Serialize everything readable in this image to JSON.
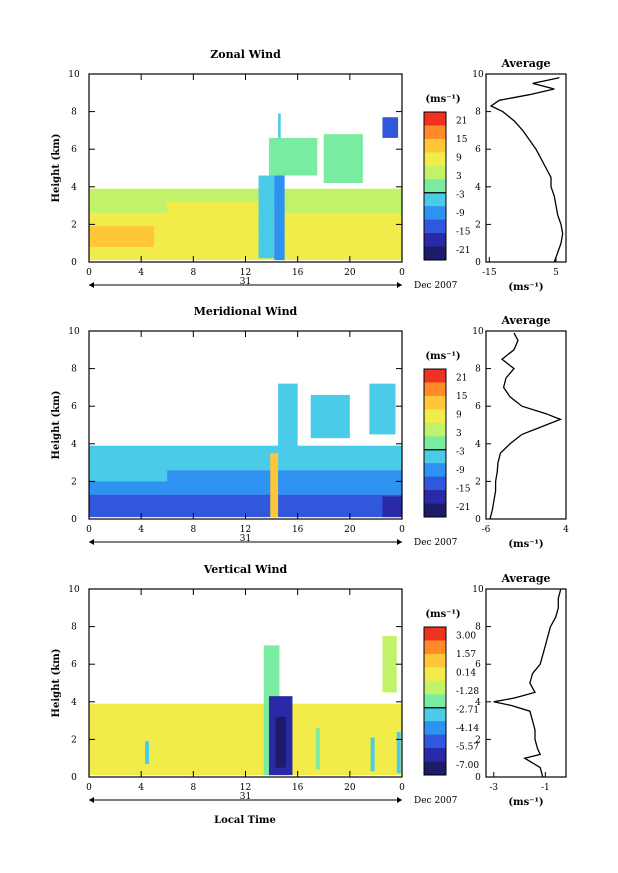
{
  "figure": {
    "xaxis_title": "Local Time"
  },
  "panels": [
    {
      "title": "Zonal Wind",
      "ylabel": "Height (km)",
      "yticks": [
        "0",
        "2",
        "4",
        "6",
        "8",
        "10"
      ],
      "xticks": [
        "0",
        "4",
        "8",
        "12",
        "16",
        "20",
        "0"
      ],
      "date_day": "31",
      "date_label": "Dec 2007",
      "colorbar": {
        "unit": "(ms⁻¹)",
        "labels": [
          "21",
          "15",
          "9",
          "3",
          "-3",
          "-9",
          "-15",
          "-21"
        ],
        "colors": [
          "#f03020",
          "#ff8a28",
          "#ffc63a",
          "#f2ec4a",
          "#c2f26a",
          "#7aeca2",
          "#4acbe8",
          "#2e92f0",
          "#3158dc",
          "#2a2aa8",
          "#1c1c6a"
        ]
      },
      "average": {
        "title": "Average",
        "xticks": [
          "-15",
          "5"
        ],
        "unit": "(ms⁻¹)",
        "yticks": [
          "0",
          "2",
          "4",
          "6",
          "8",
          "10"
        ]
      }
    },
    {
      "title": "Meridional Wind",
      "ylabel": "Height (km)",
      "yticks": [
        "0",
        "2",
        "4",
        "6",
        "8",
        "10"
      ],
      "xticks": [
        "0",
        "4",
        "8",
        "12",
        "16",
        "20",
        "0"
      ],
      "date_day": "31",
      "date_label": "Dec 2007",
      "colorbar": {
        "unit": "(ms⁻¹)",
        "labels": [
          "21",
          "15",
          "9",
          "3",
          "-3",
          "-9",
          "-15",
          "-21"
        ],
        "colors": [
          "#f03020",
          "#ff8a28",
          "#ffc63a",
          "#f2ec4a",
          "#c2f26a",
          "#7aeca2",
          "#4acbe8",
          "#2e92f0",
          "#3158dc",
          "#2a2aa8",
          "#1c1c6a"
        ]
      },
      "average": {
        "title": "Average",
        "xticks": [
          "-6",
          "4"
        ],
        "unit": "(ms⁻¹)",
        "yticks": [
          "0",
          "2",
          "4",
          "6",
          "8",
          "10"
        ]
      }
    },
    {
      "title": "Vertical Wind",
      "ylabel": "Height (km)",
      "yticks": [
        "0",
        "2",
        "4",
        "6",
        "8",
        "10"
      ],
      "xticks": [
        "0",
        "4",
        "8",
        "12",
        "16",
        "20",
        "0"
      ],
      "date_day": "31",
      "date_label": "Dec 2007",
      "colorbar": {
        "unit": "(ms⁻¹)",
        "labels": [
          "3.00",
          "1.57",
          "0.14",
          "-1.28",
          "-2.71",
          "-4.14",
          "-5.57",
          "-7.00"
        ],
        "colors": [
          "#f03020",
          "#ff8a28",
          "#ffc63a",
          "#f2ec4a",
          "#c2f26a",
          "#7aeca2",
          "#4acbe8",
          "#2e92f0",
          "#3158dc",
          "#2a2aa8",
          "#1c1c6a"
        ]
      },
      "average": {
        "title": "Average",
        "xticks": [
          "-3",
          "-1"
        ],
        "unit": "(ms⁻¹)",
        "yticks": [
          "0",
          "2",
          "4",
          "6",
          "8",
          "10"
        ]
      }
    }
  ],
  "chart_data": [
    {
      "type": "heatmap",
      "title": "Zonal Wind",
      "xlabel": "Local Time",
      "ylabel": "Height (km)",
      "xlim": [
        0,
        24
      ],
      "ylim": [
        0,
        10
      ],
      "clim": [
        -24,
        24
      ],
      "blocks": [
        {
          "t0": 0,
          "t1": 24,
          "h0": 0.1,
          "h1": 1.3,
          "v": 7
        },
        {
          "t0": 0,
          "t1": 24,
          "h0": 1.3,
          "h1": 2.6,
          "v": 8
        },
        {
          "t0": 0,
          "t1": 24,
          "h0": 2.6,
          "h1": 3.9,
          "v": 4
        },
        {
          "t0": 0,
          "t1": 5,
          "h0": 0.8,
          "h1": 1.9,
          "v": 11
        },
        {
          "t0": 6,
          "t1": 13,
          "h0": 1.9,
          "h1": 3.2,
          "v": 10
        },
        {
          "t0": 13,
          "t1": 14.2,
          "h0": 0.2,
          "h1": 4.6,
          "v": -3
        },
        {
          "t0": 14.2,
          "t1": 15,
          "h0": 0.1,
          "h1": 4.9,
          "v": -8
        },
        {
          "t0": 13.8,
          "t1": 17.5,
          "h0": 4.6,
          "h1": 6.6,
          "v": 1
        },
        {
          "t0": 14.5,
          "t1": 14.7,
          "h0": 6.6,
          "h1": 7.9,
          "v": -4
        },
        {
          "t0": 18,
          "t1": 21,
          "h0": 4.2,
          "h1": 6.8,
          "v": 2
        },
        {
          "t0": 22.5,
          "t1": 23.7,
          "h0": 6.6,
          "h1": 7.7,
          "v": -12
        }
      ],
      "average_profile": {
        "xlabel": "ms-1",
        "xlim": [
          -16,
          8
        ],
        "height": [
          0.0,
          0.5,
          1.0,
          1.5,
          2.0,
          2.5,
          3.0,
          3.5,
          4.0,
          4.5,
          5.0,
          5.5,
          6.0,
          6.5,
          7.0,
          7.5,
          8.0,
          8.3,
          8.6,
          8.9,
          9.2,
          9.5,
          9.8
        ],
        "value": [
          4.5,
          5.5,
          6.5,
          7.0,
          6.5,
          5.5,
          5.0,
          4.5,
          3.5,
          3.5,
          2.0,
          0.5,
          -1.0,
          -3.0,
          -5.0,
          -7.5,
          -11.0,
          -14.5,
          -12.0,
          -3.0,
          4.5,
          -2.0,
          6.0
        ]
      }
    },
    {
      "type": "heatmap",
      "title": "Meridional Wind",
      "xlabel": "Local Time",
      "ylabel": "Height (km)",
      "xlim": [
        0,
        24
      ],
      "ylim": [
        0,
        10
      ],
      "clim": [
        -24,
        24
      ],
      "blocks": [
        {
          "t0": 0,
          "t1": 24,
          "h0": 0.1,
          "h1": 1.3,
          "v": -11
        },
        {
          "t0": 0,
          "t1": 24,
          "h0": 1.3,
          "h1": 2.6,
          "v": -7
        },
        {
          "t0": 0,
          "t1": 24,
          "h0": 2.6,
          "h1": 3.9,
          "v": -4
        },
        {
          "t0": 0,
          "t1": 6,
          "h0": 2.0,
          "h1": 2.9,
          "v": -5
        },
        {
          "t0": 13.9,
          "t1": 14.5,
          "h0": 0.1,
          "h1": 3.5,
          "v": 14
        },
        {
          "t0": 14.5,
          "t1": 16,
          "h0": 3.7,
          "h1": 7.2,
          "v": -6
        },
        {
          "t0": 17,
          "t1": 20,
          "h0": 4.3,
          "h1": 6.6,
          "v": -6
        },
        {
          "t0": 21.5,
          "t1": 23.5,
          "h0": 4.5,
          "h1": 7.2,
          "v": -5
        },
        {
          "t0": 22.5,
          "t1": 24,
          "h0": 0.1,
          "h1": 1.2,
          "v": -17
        }
      ],
      "average_profile": {
        "xlabel": "ms-1",
        "xlim": [
          -6,
          4
        ],
        "height": [
          0.0,
          0.5,
          1.0,
          1.5,
          2.0,
          2.5,
          3.0,
          3.5,
          4.0,
          4.5,
          5.0,
          5.3,
          5.6,
          6.0,
          6.5,
          7.0,
          7.5,
          8.0,
          8.5,
          9.0,
          9.5,
          9.9
        ],
        "value": [
          -5.5,
          -5.2,
          -5.0,
          -4.8,
          -4.8,
          -4.6,
          -4.5,
          -4.2,
          -3.0,
          -1.5,
          1.5,
          3.3,
          1.5,
          -1.5,
          -3.0,
          -3.8,
          -3.5,
          -2.5,
          -4.0,
          -2.5,
          -2.0,
          -2.5
        ]
      }
    },
    {
      "type": "heatmap",
      "title": "Vertical Wind",
      "xlabel": "Local Time",
      "ylabel": "Height (km)",
      "xlim": [
        0,
        24
      ],
      "ylim": [
        0,
        10
      ],
      "clim": [
        -7.7,
        3.7
      ],
      "blocks": [
        {
          "t0": 0,
          "t1": 24,
          "h0": 0.1,
          "h1": 3.9,
          "v": 0.4
        },
        {
          "t0": 13.4,
          "t1": 14.6,
          "h0": 0.1,
          "h1": 7.0,
          "v": -2.2
        },
        {
          "t0": 13.8,
          "t1": 15.6,
          "h0": 0.1,
          "h1": 4.3,
          "v": -5.8
        },
        {
          "t0": 14.3,
          "t1": 15.1,
          "h0": 0.5,
          "h1": 3.2,
          "v": -6.8
        },
        {
          "t0": 22.5,
          "t1": 23.6,
          "h0": 4.5,
          "h1": 7.5,
          "v": -1.0
        },
        {
          "t0": 4.3,
          "t1": 4.6,
          "h0": 0.7,
          "h1": 1.9,
          "v": -2.6
        },
        {
          "t0": 17.4,
          "t1": 17.7,
          "h0": 0.4,
          "h1": 2.6,
          "v": -2.2
        },
        {
          "t0": 21.6,
          "t1": 21.9,
          "h0": 0.3,
          "h1": 2.1,
          "v": -2.6
        },
        {
          "t0": 23.6,
          "t1": 23.9,
          "h0": 0.2,
          "h1": 2.4,
          "v": -3.0
        }
      ],
      "average_profile": {
        "xlabel": "ms-1",
        "xlim": [
          -3.3,
          -0.2
        ],
        "height": [
          0.0,
          0.5,
          1.0,
          1.2,
          1.5,
          2.0,
          2.5,
          3.0,
          3.5,
          3.8,
          4.0,
          4.2,
          4.5,
          5.0,
          5.5,
          6.0,
          6.5,
          7.0,
          7.5,
          8.0,
          8.5,
          9.0,
          9.5,
          10.0
        ],
        "value": [
          -1.1,
          -1.2,
          -1.8,
          -1.2,
          -1.3,
          -1.4,
          -1.4,
          -1.5,
          -1.6,
          -2.3,
          -3.0,
          -2.2,
          -1.4,
          -1.6,
          -1.5,
          -1.2,
          -1.1,
          -1.0,
          -0.9,
          -0.8,
          -0.6,
          -0.5,
          -0.5,
          -0.4
        ]
      }
    }
  ]
}
